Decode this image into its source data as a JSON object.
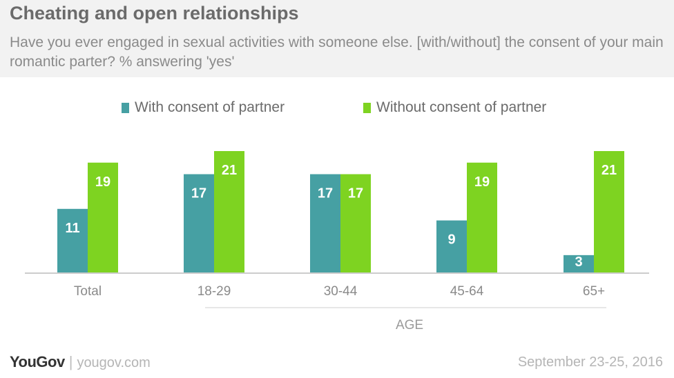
{
  "header": {
    "title": "Cheating and open relationships",
    "subtitle": "Have you ever engaged in sexual activities with someone else. [with/without] the consent of your main romantic parter? % answering 'yes'"
  },
  "chart_data": {
    "type": "bar",
    "categories": [
      "Total",
      "18-29",
      "30-44",
      "45-64",
      "65+"
    ],
    "series": [
      {
        "name": "With consent of partner",
        "color": "#46a0a3",
        "values": [
          11,
          17,
          17,
          9,
          3
        ]
      },
      {
        "name": "Without consent of partner",
        "color": "#7ed321",
        "values": [
          19,
          21,
          17,
          19,
          21
        ]
      }
    ],
    "group_label": "AGE",
    "legend": "top",
    "grid": false,
    "ylim": [
      0,
      21
    ]
  },
  "footer": {
    "brand": "YouGov",
    "separator": "|",
    "url": "yougov.com",
    "date": "September 23-25, 2016"
  }
}
